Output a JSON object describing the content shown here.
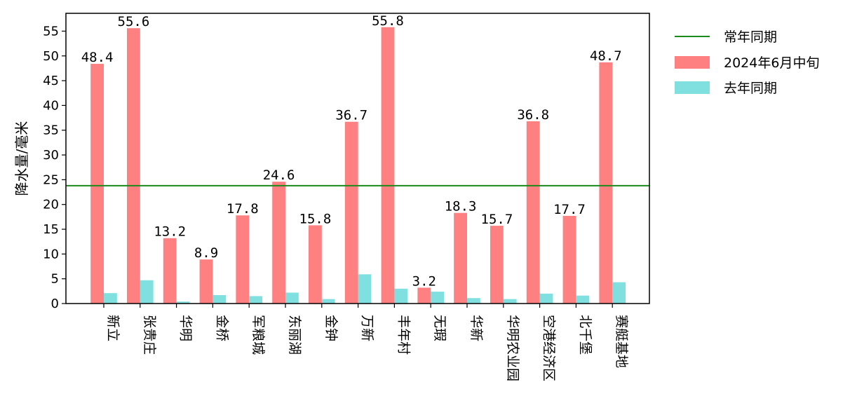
{
  "chart_data": {
    "type": "bar",
    "title": "",
    "xlabel": "",
    "ylabel": "降水量/毫米",
    "ylim": [
      0,
      58.6
    ],
    "yticks": [
      0,
      5,
      10,
      15,
      20,
      25,
      30,
      35,
      40,
      45,
      50,
      55
    ],
    "grid": false,
    "legend_position": "outside-top-right",
    "categories": [
      "新立",
      "张贵庄",
      "华明",
      "金桥",
      "军粮城",
      "东丽湖",
      "金钟",
      "万新",
      "丰年村",
      "无瑕",
      "华新",
      "华明农业园",
      "空港经济区",
      "北千堡",
      "赛艇基地"
    ],
    "series": [
      {
        "name": "2024年6月中旬",
        "color": "#ff8080",
        "values": [
          48.4,
          55.6,
          13.2,
          8.9,
          17.8,
          24.6,
          15.8,
          36.7,
          55.8,
          3.2,
          18.3,
          15.7,
          36.8,
          17.7,
          48.7
        ],
        "value_labels": [
          "48.4",
          "55.6",
          "13.2",
          "8.9",
          "17.8",
          "24.6",
          "15.8",
          "36.7",
          "55.8",
          "3.2",
          "18.3",
          "15.7",
          "36.8",
          "17.7",
          "48.7"
        ]
      },
      {
        "name": "去年同期",
        "color": "#80e0e0",
        "values": [
          2.1,
          4.7,
          0.4,
          1.7,
          1.5,
          2.2,
          0.9,
          5.9,
          3.0,
          2.4,
          1.1,
          0.9,
          2.0,
          1.6,
          4.3
        ]
      }
    ],
    "reference_line": {
      "name": "常年同期",
      "value": 23.8,
      "color": "#1a8a1a"
    },
    "legend": [
      "常年同期",
      "2024年6月中旬",
      "去年同期"
    ]
  }
}
